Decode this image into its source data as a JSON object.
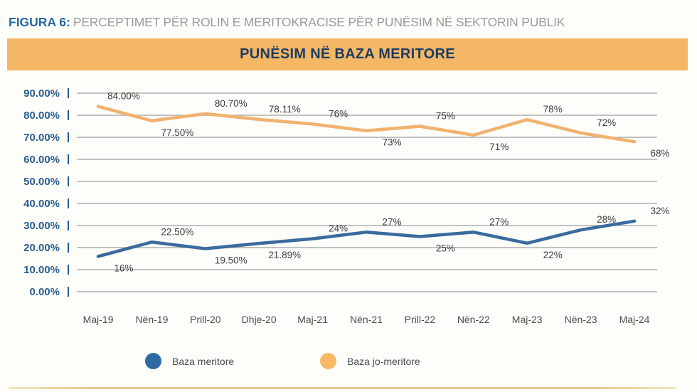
{
  "heading": {
    "figure_label": "FIGURA 6:",
    "figure_title": "PERCEPTIMET PËR ROLIN E MERITOKRACISE PËR PUNËSIM NË SEKTORIN PUBLIK"
  },
  "banner": {
    "title": "PUNËSIM NË BAZA MERITORE",
    "background": "#F4B765",
    "text_color": "#1C3C63"
  },
  "chart_data": {
    "type": "line",
    "title": "PUNËSIM NË BAZA MERITORE",
    "categories": [
      "Maj-19",
      "Nën-19",
      "Prill-20",
      "Dhje-20",
      "Maj-21",
      "Nën-21",
      "Prill-22",
      "Nën-22",
      "Maj-23",
      "Nën-23",
      "Maj-24"
    ],
    "series": [
      {
        "name": "Baza meritore",
        "color": "#3A6B9E",
        "values": [
          16,
          22.5,
          19.5,
          21.89,
          24,
          27,
          25,
          27,
          22,
          28,
          32
        ],
        "labels": [
          "16%",
          "22.50%",
          "19.50%",
          "21.89%",
          "24%",
          "27%",
          "25%",
          "27%",
          "22%",
          "28%",
          "32%"
        ],
        "label_positions": [
          "below",
          "above",
          "below",
          "below",
          "above",
          "above",
          "below",
          "above",
          "below",
          "above",
          "above"
        ]
      },
      {
        "name": "Baza jo-meritore",
        "color": "#F0B26E",
        "values": [
          84,
          77.5,
          80.7,
          78.11,
          76,
          73,
          75,
          71,
          78,
          72,
          68
        ],
        "labels": [
          "84.00%",
          "77.50%",
          "80.70%",
          "78.11%",
          "76%",
          "73%",
          "75%",
          "71%",
          "78%",
          "72%",
          "68%"
        ],
        "label_positions": [
          "above",
          "below",
          "above",
          "above",
          "above",
          "below",
          "above",
          "below",
          "above",
          "above",
          "below"
        ]
      }
    ],
    "ylim": [
      0,
      90
    ],
    "ytick_step": 10,
    "yticks": [
      "90.00%",
      "80.00%",
      "70.00%",
      "60.00%",
      "50.00%",
      "40.00%",
      "30.00%",
      "20.00%",
      "10.00%",
      "0.00%"
    ],
    "grid": true,
    "legend_position": "bottom",
    "colors": {
      "grid": "#ADADAD",
      "axis": "#2B5C8F",
      "y_label": "#2B5C8F",
      "x_label": "#4E4E4E",
      "data_label": "#3C3C3C"
    }
  },
  "legend": {
    "items": [
      {
        "label": "Baza meritore",
        "color": "#2F6BA3"
      },
      {
        "label": "Baza jo-meritore",
        "color": "#F6BA66"
      }
    ]
  }
}
